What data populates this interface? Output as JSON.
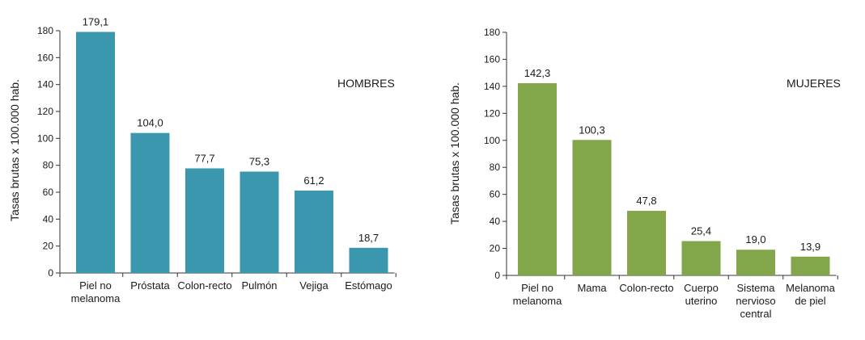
{
  "chart_data": [
    {
      "type": "bar",
      "panel_label": "HOMBRES",
      "ylabel": "Tasas brutas x 100.000 hab.",
      "xlabel": "",
      "ylim": [
        0,
        180
      ],
      "yticks": [
        0,
        20,
        40,
        60,
        80,
        100,
        120,
        140,
        160,
        180
      ],
      "categories": [
        [
          "Piel no",
          "melanoma"
        ],
        [
          "Próstata"
        ],
        [
          "Colon-recto"
        ],
        [
          "Pulmón"
        ],
        [
          "Vejiga"
        ],
        [
          "Estómago"
        ]
      ],
      "values": [
        179.1,
        104.0,
        77.7,
        75.3,
        61.2,
        18.7
      ],
      "value_labels": [
        "179,1",
        "104,0",
        "77,7",
        "75,3",
        "61,2",
        "18,7"
      ],
      "color": "#3a97ae",
      "grid": false
    },
    {
      "type": "bar",
      "panel_label": "MUJERES",
      "ylabel": "Tasas brutas x 100.000 hab.",
      "xlabel": "",
      "ylim": [
        0,
        180
      ],
      "yticks": [
        0,
        20,
        40,
        60,
        80,
        100,
        120,
        140,
        160,
        180
      ],
      "categories": [
        [
          "Piel no",
          "melanoma"
        ],
        [
          "Mama"
        ],
        [
          "Colon-recto"
        ],
        [
          "Cuerpo",
          "uterino"
        ],
        [
          "Sistema",
          "nervioso",
          "central"
        ],
        [
          "Melanoma",
          "de piel"
        ]
      ],
      "values": [
        142.3,
        100.3,
        47.8,
        25.4,
        19.0,
        13.9
      ],
      "value_labels": [
        "142,3",
        "100,3",
        "47,8",
        "25,4",
        "19,0",
        "13,9"
      ],
      "color": "#82a64a",
      "grid": false
    }
  ]
}
